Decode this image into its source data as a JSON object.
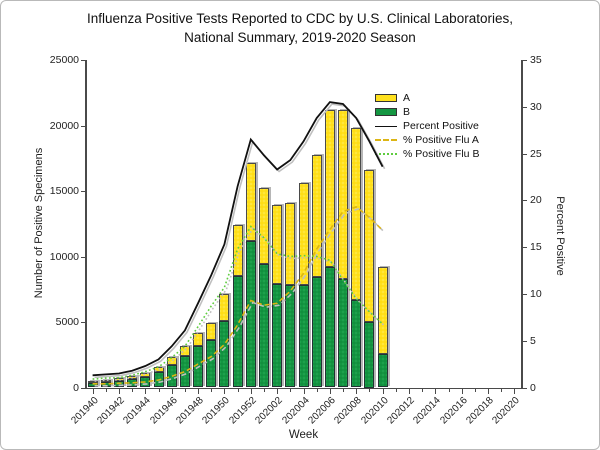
{
  "window": {
    "title_line1": "Influenza Positive Tests Reported to CDC by U.S. Clinical Laboratories,",
    "title_line2": "National Summary, 2019-2020 Season"
  },
  "chart_data": {
    "type": "bar",
    "subtype": "stacked-bars-with-percent-lines",
    "title": "Influenza Positive Tests Reported to CDC by U.S. Clinical Laboratories, National Summary, 2019-2020 Season",
    "xlabel": "Week",
    "y_left": {
      "label": "Number of Positive Specimens",
      "min": 0,
      "max": 25000,
      "ticks": [
        "0",
        "5000",
        "10000",
        "15000",
        "20000",
        "25000"
      ]
    },
    "y_right": {
      "label": "Percent Positive",
      "min": 0,
      "max": 35,
      "ticks": [
        "0",
        "5",
        "10",
        "15",
        "20",
        "25",
        "30",
        "35"
      ]
    },
    "x_axis": {
      "total_slots": 33,
      "tick_labels": [
        "201940",
        "201942",
        "201944",
        "201946",
        "201948",
        "201950",
        "201952",
        "202002",
        "202004",
        "202006",
        "202008",
        "202010",
        "202012",
        "202014",
        "202016",
        "202018",
        "202020"
      ]
    },
    "categories": [
      "201940",
      "201941",
      "201942",
      "201943",
      "201944",
      "201945",
      "201946",
      "201947",
      "201948",
      "201949",
      "201950",
      "201951",
      "201952",
      "202001",
      "202002",
      "202003",
      "202004",
      "202005",
      "202006",
      "202007",
      "202008",
      "202009",
      "202010"
    ],
    "series": [
      {
        "name": "A",
        "type": "bar",
        "axis": "left",
        "color": "#ffe11e",
        "values": [
          140,
          160,
          190,
          230,
          290,
          400,
          560,
          800,
          1000,
          1300,
          2000,
          3900,
          5900,
          5800,
          6000,
          6300,
          7800,
          9300,
          12000,
          12900,
          13100,
          11600,
          6650
        ]
      },
      {
        "name": "B",
        "type": "bar",
        "axis": "left",
        "color": "#149642",
        "values": [
          380,
          430,
          500,
          620,
          810,
          1200,
          1740,
          2400,
          3150,
          3600,
          5100,
          8500,
          11200,
          9400,
          7900,
          7800,
          7800,
          8450,
          9200,
          8300,
          6700,
          5000,
          2550
        ]
      },
      {
        "name": "Percent Positive",
        "type": "line",
        "axis": "right",
        "color": "#111111",
        "dash": "solid",
        "values": [
          1.3,
          1.4,
          1.5,
          1.8,
          2.3,
          3.0,
          4.4,
          6.1,
          9.0,
          12.0,
          15.3,
          21.5,
          26.5,
          24.8,
          23.3,
          24.3,
          26.3,
          28.8,
          30.5,
          30.3,
          28.8,
          26.3,
          23.6
        ]
      },
      {
        "name": "% Positive Flu A",
        "type": "line",
        "axis": "right",
        "color": "#dcb514",
        "dash": "dashed",
        "values": [
          0.4,
          0.4,
          0.45,
          0.5,
          0.6,
          0.8,
          1.2,
          1.7,
          2.5,
          3.3,
          4.6,
          6.7,
          9.3,
          8.8,
          9.0,
          10.3,
          12.2,
          14.8,
          16.9,
          18.8,
          19.3,
          18.2,
          16.8
        ]
      },
      {
        "name": "% Positive Flu B",
        "type": "line",
        "axis": "right",
        "color": "#5ecc3f",
        "dash": "dotted",
        "values": [
          0.9,
          1.0,
          1.05,
          1.3,
          1.7,
          2.2,
          3.2,
          4.4,
          6.5,
          8.7,
          10.7,
          14.8,
          17.2,
          16.0,
          14.3,
          14.0,
          14.1,
          14.0,
          13.6,
          11.5,
          9.5,
          8.1,
          6.8
        ]
      }
    ],
    "legend": [
      "A",
      "B",
      "Percent Positive",
      "% Positive Flu A",
      "% Positive Flu B"
    ],
    "legend_position": "inside-top-right",
    "grid": false
  }
}
